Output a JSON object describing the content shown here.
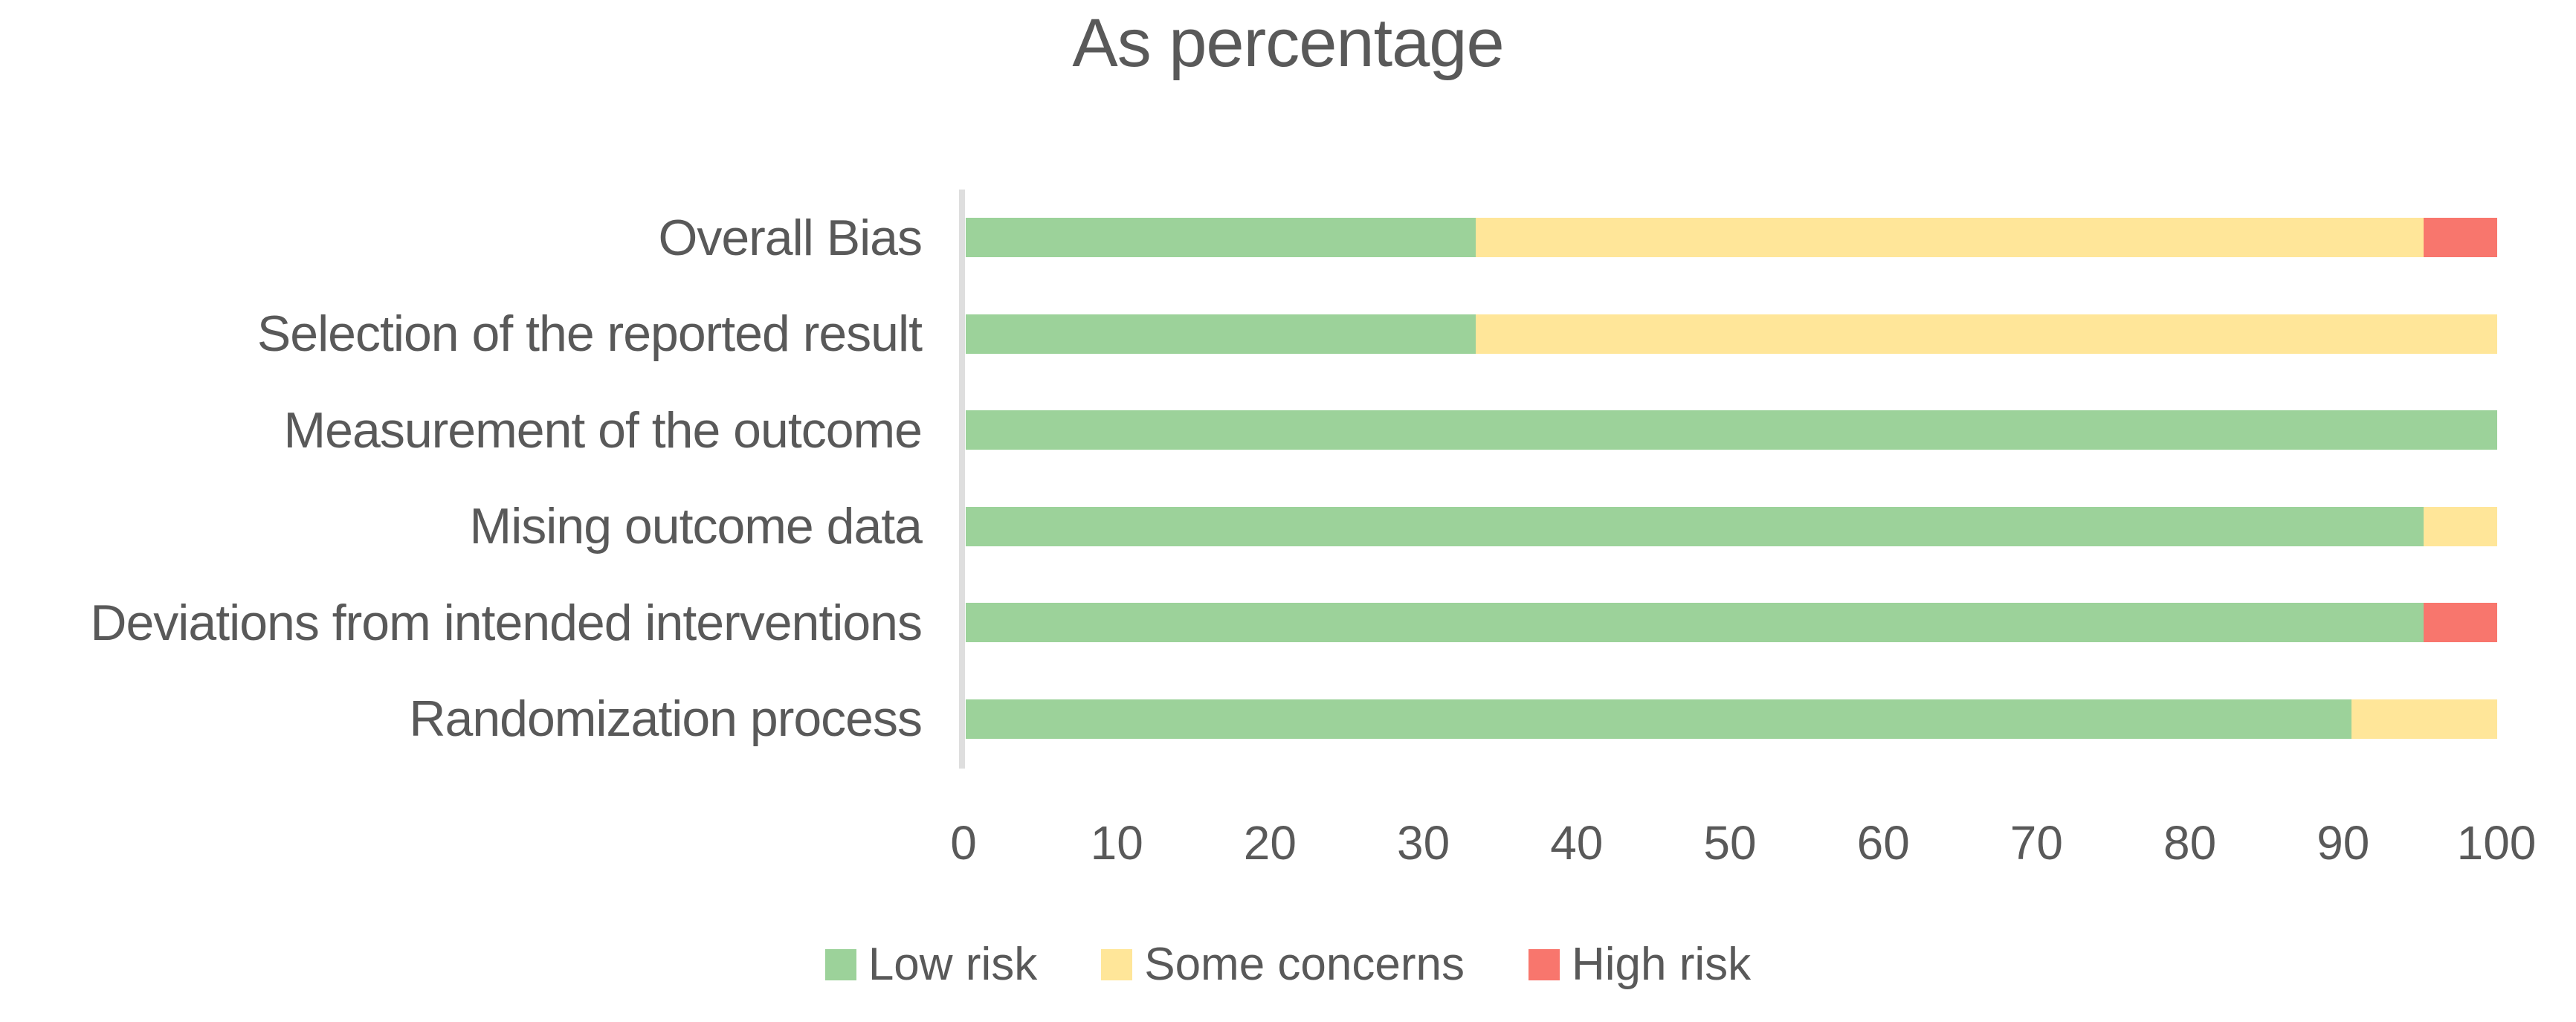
{
  "title": "As percentage",
  "text_color": "#595959",
  "axis_line_color": "#dedede",
  "chart_data": {
    "type": "bar",
    "orientation": "horizontal",
    "stacked": true,
    "title": "As percentage",
    "unit": "percent",
    "categories": [
      "Overall Bias",
      "Selection of the reported result",
      "Measurement of the outcome",
      "Mising outcome data",
      "Deviations from intended interventions",
      "Randomization process"
    ],
    "series": [
      {
        "name": "Low risk",
        "color": "#9cd29a",
        "values": [
          33.3,
          33.3,
          100,
          95.2,
          95.2,
          90.5
        ]
      },
      {
        "name": "Some concerns",
        "color": "#ffe699",
        "values": [
          61.9,
          66.7,
          0,
          4.8,
          0,
          9.5
        ]
      },
      {
        "name": "High risk",
        "color": "#f8766d",
        "values": [
          4.8,
          0,
          0,
          0,
          4.8,
          0
        ]
      }
    ],
    "x_axis": {
      "min": 0,
      "max": 100,
      "tick_step": 10,
      "tick_labels": [
        "0",
        "10",
        "20",
        "30",
        "40",
        "50",
        "60",
        "70",
        "80",
        "90",
        "100"
      ]
    },
    "legend": {
      "position": "bottom",
      "entries": [
        "Low risk",
        "Some concerns",
        "High risk"
      ]
    },
    "grid": false
  }
}
